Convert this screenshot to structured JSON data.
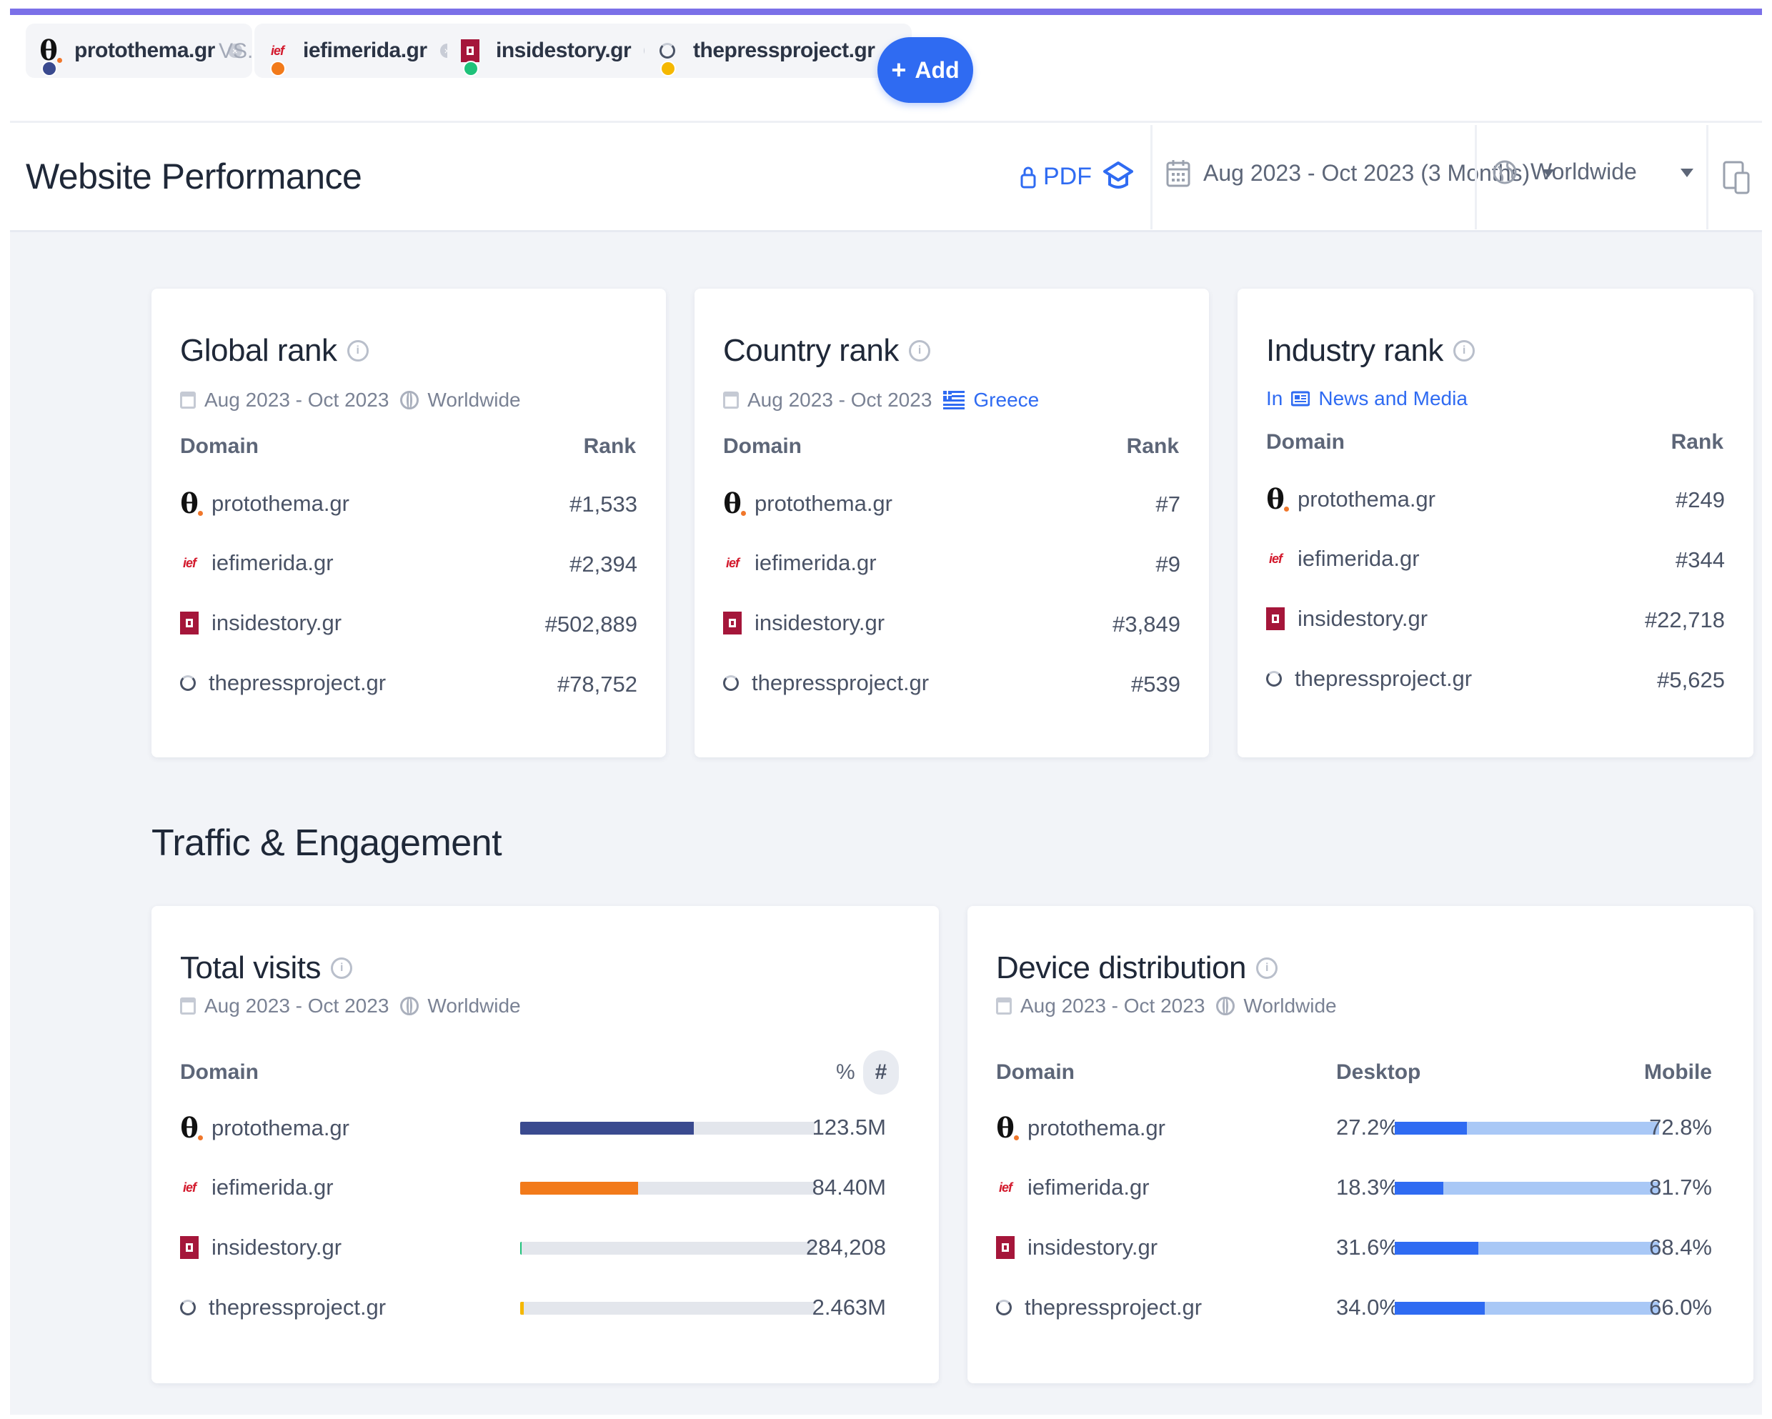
{
  "compare_bar": {
    "sites": [
      {
        "name": "protothema.gr",
        "dot_color": "#3a4a8f"
      },
      {
        "name": "iefimerida.gr",
        "dot_color": "#f27a1a"
      },
      {
        "name": "insidestory.gr",
        "dot_color": "#1fc27a"
      },
      {
        "name": "thepressproject.gr",
        "dot_color": "#f5b800"
      }
    ],
    "vs_label": "VS.",
    "add_label": "Add",
    "add_icon": "+"
  },
  "header": {
    "title": "Website Performance",
    "pdf_label": "PDF",
    "date_range": "Aug 2023 - Oct 2023 (3 Months)",
    "country": "Worldwide"
  },
  "global_rank": {
    "title": "Global rank",
    "info": "i",
    "period": "Aug 2023 - Oct 2023",
    "region": "Worldwide",
    "col_domain": "Domain",
    "col_rank": "Rank",
    "rows": [
      {
        "domain": "protothema.gr",
        "rank": "#1,533"
      },
      {
        "domain": "iefimerida.gr",
        "rank": "#2,394"
      },
      {
        "domain": "insidestory.gr",
        "rank": "#502,889"
      },
      {
        "domain": "thepressproject.gr",
        "rank": "#78,752"
      }
    ]
  },
  "country_rank": {
    "title": "Country rank",
    "info": "i",
    "period": "Aug 2023 - Oct 2023",
    "region": "Greece",
    "col_domain": "Domain",
    "col_rank": "Rank",
    "rows": [
      {
        "domain": "protothema.gr",
        "rank": "#7"
      },
      {
        "domain": "iefimerida.gr",
        "rank": "#9"
      },
      {
        "domain": "insidestory.gr",
        "rank": "#3,849"
      },
      {
        "domain": "thepressproject.gr",
        "rank": "#539"
      }
    ]
  },
  "industry_rank": {
    "title": "Industry rank",
    "info": "i",
    "in_label": "In",
    "industry": "News and Media",
    "col_domain": "Domain",
    "col_rank": "Rank",
    "rows": [
      {
        "domain": "protothema.gr",
        "rank": "#249"
      },
      {
        "domain": "iefimerida.gr",
        "rank": "#344"
      },
      {
        "domain": "insidestory.gr",
        "rank": "#22,718"
      },
      {
        "domain": "thepressproject.gr",
        "rank": "#5,625"
      }
    ]
  },
  "section_title": "Traffic & Engagement",
  "total_visits": {
    "title": "Total visits",
    "info": "i",
    "period": "Aug 2023 - Oct 2023",
    "region": "Worldwide",
    "col_domain": "Domain",
    "toggle_pct": "%",
    "toggle_num": "#",
    "rows": [
      {
        "domain": "protothema.gr",
        "value": "123.5M",
        "share": 0.59,
        "color": "#3a4a8f"
      },
      {
        "domain": "iefimerida.gr",
        "value": "84.40M",
        "share": 0.4,
        "color": "#f27a1a"
      },
      {
        "domain": "insidestory.gr",
        "value": "284,208",
        "share": 0.004,
        "color": "#1fc27a"
      },
      {
        "domain": "thepressproject.gr",
        "value": "2.463M",
        "share": 0.012,
        "color": "#f5b800"
      }
    ]
  },
  "device_distribution": {
    "title": "Device distribution",
    "info": "i",
    "period": "Aug 2023 - Oct 2023",
    "region": "Worldwide",
    "col_domain": "Domain",
    "col_desktop": "Desktop",
    "col_mobile": "Mobile",
    "rows": [
      {
        "domain": "protothema.gr",
        "desktop": "27.2%",
        "mobile": "72.8%",
        "desktop_share": 0.272
      },
      {
        "domain": "iefimerida.gr",
        "desktop": "18.3%",
        "mobile": "81.7%",
        "desktop_share": 0.183
      },
      {
        "domain": "insidestory.gr",
        "desktop": "31.6%",
        "mobile": "68.4%",
        "desktop_share": 0.316
      },
      {
        "domain": "thepressproject.gr",
        "desktop": "34.0%",
        "mobile": "66.0%",
        "desktop_share": 0.34
      }
    ]
  },
  "colors": {
    "accent": "#2f6bf2",
    "topline": "#7b70e8",
    "desktop": "#2f6bf2",
    "mobile": "#a9c8f6"
  }
}
